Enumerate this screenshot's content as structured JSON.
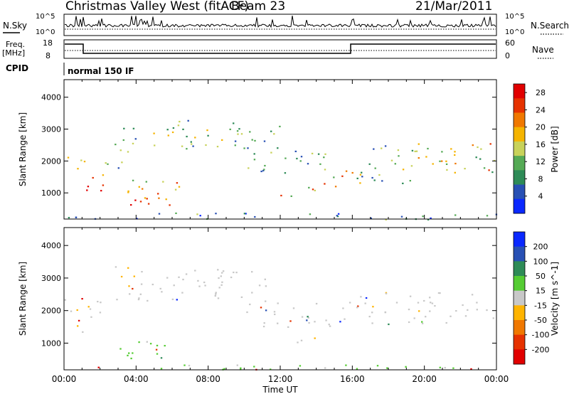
{
  "header": {
    "station": "Christmas Valley West (fitACF)",
    "beam": "Beam 23",
    "date": "21/Mar/2011"
  },
  "strips": {
    "nsky_label": "N.Sky",
    "nsearch_label": "N.Search",
    "noise_tick_top": "10^5",
    "noise_tick_bottom": "10^0",
    "freq_label_line1": "Freq.",
    "freq_label_line2": "[MHz]",
    "freq_ticks": [
      "18",
      "8"
    ],
    "nave_label": "Nave",
    "nave_ticks": [
      "60",
      "0"
    ],
    "cpid_label": "CPID",
    "cpid_value": "normal 150 IF"
  },
  "colors": {
    "power": [
      "#0a28ff",
      "#2850b4",
      "#2e8b57",
      "#55aa55",
      "#c8d25a",
      "#f5b400",
      "#f07800",
      "#e63200",
      "#e10000"
    ],
    "velocity": [
      "#0a28ff",
      "#2850b4",
      "#2e8b57",
      "#55cc33",
      "#c8c8c8",
      "#ffb400",
      "#f07800",
      "#e63200",
      "#e10000"
    ]
  },
  "chart_data": [
    {
      "type": "heatmap",
      "panel": "power",
      "xlabel": "",
      "ylabel": "Slant Range [km]",
      "x_ticks": [
        "00:00",
        "04:00",
        "08:00",
        "12:00",
        "16:00",
        "20:00",
        "00:00"
      ],
      "xlim_hours": [
        0,
        24
      ],
      "y_ticks": [
        1000,
        2000,
        3000,
        4000
      ],
      "ylim_km": [
        180,
        4550
      ],
      "colorbar": {
        "label": "Power [dB]",
        "ticks": [
          4,
          8,
          12,
          16,
          20,
          24,
          28
        ],
        "range": [
          0,
          30
        ]
      },
      "echo_regions": [
        {
          "t0": 0.0,
          "t1": 1.1,
          "r0": 1600,
          "r1": 2200,
          "level": 0.55
        },
        {
          "t0": 0.9,
          "t1": 2.3,
          "r0": 950,
          "r1": 1700,
          "level": 0.85
        },
        {
          "t0": 2.0,
          "t1": 3.2,
          "r0": 1700,
          "r1": 2300,
          "level": 0.35
        },
        {
          "t0": 2.8,
          "t1": 4.0,
          "r0": 2200,
          "r1": 3400,
          "level": 0.45
        },
        {
          "t0": 2.0,
          "t1": 6.0,
          "r0": 550,
          "r1": 1000,
          "level": 0.85
        },
        {
          "t0": 3.5,
          "t1": 6.8,
          "r0": 900,
          "r1": 1450,
          "level": 0.55
        },
        {
          "t0": 4.0,
          "t1": 12.0,
          "r0": 2400,
          "r1": 3300,
          "level": 0.35
        },
        {
          "t0": 10.0,
          "t1": 14.5,
          "r0": 1600,
          "r1": 2400,
          "level": 0.35
        },
        {
          "t0": 12.0,
          "t1": 14.2,
          "r0": 900,
          "r1": 1300,
          "level": 0.55
        },
        {
          "t0": 14.2,
          "t1": 16.0,
          "r0": 1200,
          "r1": 1900,
          "level": 0.6
        },
        {
          "t0": 16.2,
          "t1": 19.5,
          "r0": 1300,
          "r1": 2600,
          "level": 0.4
        },
        {
          "t0": 19.5,
          "t1": 24.0,
          "r0": 1500,
          "r1": 2600,
          "level": 0.55
        },
        {
          "t0": 0.0,
          "t1": 24.0,
          "r0": 180,
          "r1": 400,
          "level": 0.25
        }
      ]
    },
    {
      "type": "heatmap",
      "panel": "velocity",
      "xlabel": "Time UT",
      "ylabel": "Slant Range [km]",
      "x_ticks": [
        "00:00",
        "04:00",
        "08:00",
        "12:00",
        "16:00",
        "20:00",
        "00:00"
      ],
      "xlim_hours": [
        0,
        24
      ],
      "y_ticks": [
        1000,
        2000,
        3000,
        4000
      ],
      "ylim_km": [
        180,
        4550
      ],
      "colorbar": {
        "label": "Velocity [m s^-1]",
        "ticks": [
          200,
          100,
          50,
          15,
          -15,
          -50,
          -100,
          -200
        ]
      },
      "echo_regions": [
        {
          "t0": 0.0,
          "t1": 2.0,
          "r0": 1200,
          "r1": 2400,
          "vel": 0
        },
        {
          "t0": 2.0,
          "t1": 6.0,
          "r0": 500,
          "r1": 1100,
          "vel": 40
        },
        {
          "t0": 2.8,
          "t1": 4.0,
          "r0": 2200,
          "r1": 3400,
          "vel": -30
        },
        {
          "t0": 4.0,
          "t1": 12.0,
          "r0": 2300,
          "r1": 3300,
          "vel": 0
        },
        {
          "t0": 10.0,
          "t1": 16.0,
          "r0": 1500,
          "r1": 2300,
          "vel": 0
        },
        {
          "t0": 12.0,
          "t1": 14.0,
          "r0": 950,
          "r1": 1200,
          "vel": -40
        },
        {
          "t0": 16.2,
          "t1": 24.0,
          "r0": 1600,
          "r1": 2600,
          "vel": 0
        },
        {
          "t0": 0.0,
          "t1": 24.0,
          "r0": 180,
          "r1": 350,
          "vel": 20
        }
      ]
    }
  ]
}
